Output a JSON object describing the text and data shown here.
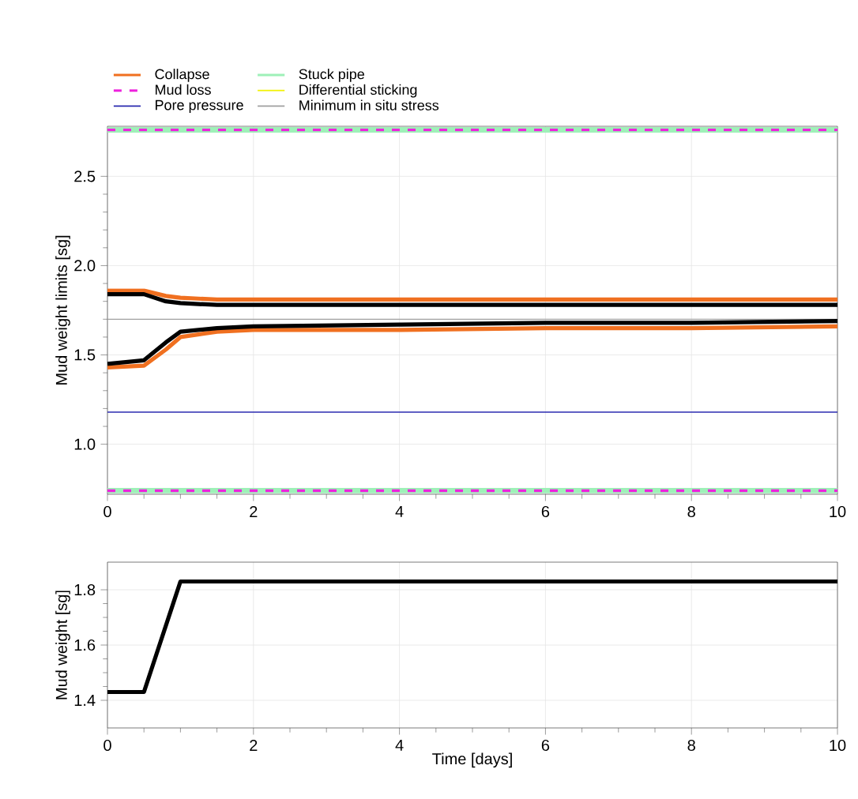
{
  "chart_data": [
    {
      "type": "line",
      "ylabel": "Mud weight limits [sg]",
      "legend": "top",
      "grid": true,
      "xlim": [
        0,
        10
      ],
      "xticks": [
        0,
        2,
        4,
        6,
        8,
        10
      ],
      "ylim": [
        0.72,
        2.78
      ],
      "yticks": [
        {
          "value": 1,
          "label": "1.0"
        },
        {
          "value": 1.5,
          "label": "1.5"
        },
        {
          "value": 2,
          "label": "2.0"
        },
        {
          "value": 2.5,
          "label": "2.5"
        }
      ],
      "series": [
        {
          "name": "Collapse",
          "color": "#f07020",
          "x": [
            0,
            0.5,
            0.8,
            1.0,
            1.5,
            2,
            4,
            6,
            8,
            10
          ],
          "values": [
            1.43,
            1.44,
            1.53,
            1.6,
            1.63,
            1.64,
            1.64,
            1.65,
            1.65,
            1.66
          ]
        },
        {
          "name": "Mud loss",
          "color": "#ee22dd",
          "line_style": "dashed",
          "x": [
            0,
            10
          ],
          "values": [
            0.74,
            0.74
          ]
        },
        {
          "name": "Pore pressure",
          "color": "#2b2bb0",
          "x": [
            0,
            10
          ],
          "values": [
            1.18,
            1.18
          ]
        },
        {
          "name": "Stuck pipe",
          "color": "#9ef0b8",
          "line_style": "solid",
          "x": [
            0,
            10
          ],
          "values": [
            0.74,
            0.74
          ]
        },
        {
          "name": "Differential sticking",
          "color": "#f2f200",
          "values": [
            null
          ]
        },
        {
          "name": "Minimum in situ stress",
          "color": "#a0a0a0",
          "x": [
            0,
            10
          ],
          "values": [
            1.7,
            1.7
          ]
        },
        {
          "color": "#f07020",
          "x": [
            0,
            0.5,
            0.8,
            1.0,
            1.5,
            2,
            4,
            6,
            8,
            10
          ],
          "values": [
            1.86,
            1.86,
            1.83,
            1.82,
            1.81,
            1.81,
            1.81,
            1.81,
            1.81,
            1.81
          ]
        },
        {
          "color": "#000000",
          "x": [
            0,
            0.5,
            0.8,
            1.0,
            1.5,
            2,
            4,
            6,
            8,
            10
          ],
          "values": [
            1.45,
            1.47,
            1.57,
            1.63,
            1.65,
            1.66,
            1.67,
            1.68,
            1.68,
            1.69
          ]
        },
        {
          "color": "#000000",
          "x": [
            0,
            0.5,
            0.8,
            1.0,
            1.5,
            2,
            4,
            6,
            8,
            10
          ],
          "values": [
            1.84,
            1.84,
            1.8,
            1.79,
            1.78,
            1.78,
            1.78,
            1.78,
            1.78,
            1.78
          ]
        },
        {
          "color": "#9ef0b8",
          "line_style": "solid",
          "x": [
            0,
            10
          ],
          "values": [
            2.76,
            2.76
          ]
        },
        {
          "color": "#ee22dd",
          "line_style": "dashed",
          "x": [
            0,
            10
          ],
          "values": [
            2.76,
            2.76
          ]
        }
      ]
    },
    {
      "type": "line",
      "xlabel": "Time [days]",
      "ylabel": "Mud weight [sg]",
      "grid": true,
      "xlim": [
        0,
        10
      ],
      "xticks": [
        0,
        2,
        4,
        6,
        8,
        10
      ],
      "ylim": [
        1.3,
        1.9
      ],
      "yticks": [
        {
          "value": 1.4,
          "label": "1.4"
        },
        {
          "value": 1.6,
          "label": "1.6"
        },
        {
          "value": 1.8,
          "label": "1.8"
        }
      ],
      "series": [
        {
          "color": "#000000",
          "x": [
            0,
            0.5,
            1.0,
            10
          ],
          "values": [
            1.43,
            1.43,
            1.83,
            1.83
          ]
        }
      ]
    }
  ]
}
